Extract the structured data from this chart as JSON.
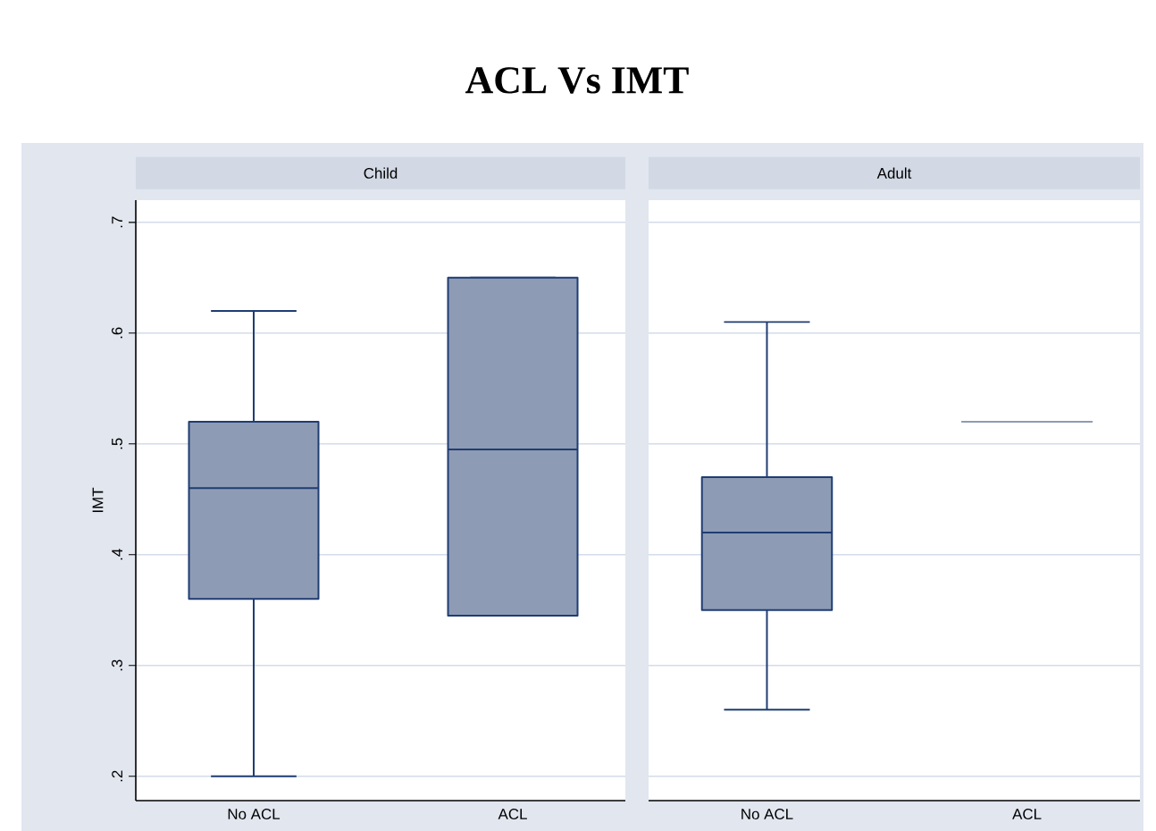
{
  "chart_data": [
    {
      "type": "box",
      "title": "ACL Vs IMT",
      "subtitle": "Child",
      "ylabel": "IMT",
      "categories": [
        "No ACL",
        "ACL"
      ],
      "color": "#8e9bb4",
      "boxes": [
        {
          "low": 0.2,
          "q1": 0.36,
          "median": 0.46,
          "q3": 0.52,
          "high": 0.62
        },
        {
          "low": 0.345,
          "q1": 0.345,
          "median": 0.495,
          "q3": 0.65,
          "high": 0.65
        }
      ],
      "ylim": [
        0.178,
        0.72
      ],
      "yticks": [
        {
          "value": 0.2,
          "label": ".2"
        },
        {
          "value": 0.3,
          "label": ".3"
        },
        {
          "value": 0.4,
          "label": ".4"
        },
        {
          "value": 0.5,
          "label": ".5"
        },
        {
          "value": 0.6,
          "label": ".6"
        },
        {
          "value": 0.7,
          "label": ".7"
        }
      ],
      "grid": "y"
    },
    {
      "type": "box",
      "subtitle": "Adult",
      "categories": [
        "No ACL",
        "ACL"
      ],
      "color": "#8e9bb4",
      "boxes": [
        {
          "low": 0.26,
          "q1": 0.35,
          "median": 0.42,
          "q3": 0.47,
          "high": 0.61
        },
        {
          "low": 0.52,
          "q1": 0.52,
          "median": 0.52,
          "q3": 0.52,
          "high": 0.52
        }
      ],
      "ylim": [
        0.178,
        0.72
      ],
      "yticks": [
        0.2,
        0.3,
        0.4,
        0.5,
        0.6,
        0.7
      ],
      "grid": "y",
      "tick_labels": "x"
    }
  ]
}
